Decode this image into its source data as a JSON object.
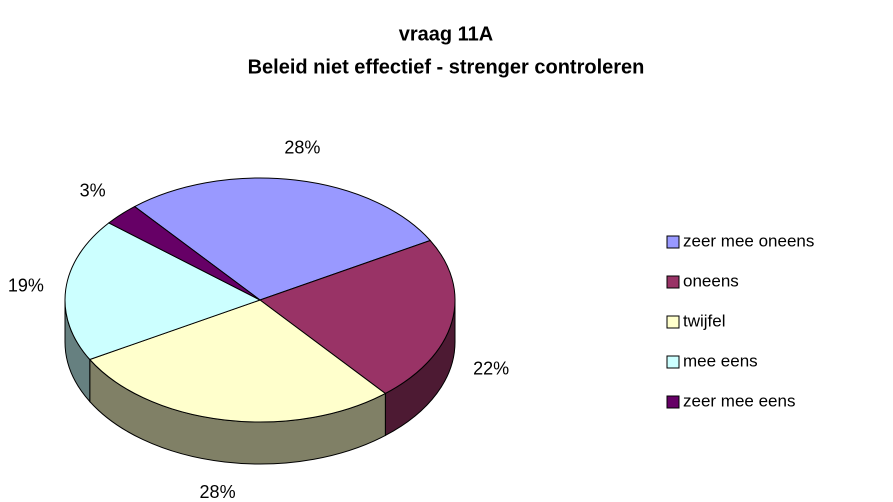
{
  "chart_data": {
    "type": "pie3d",
    "title": [
      "vraag 11A",
      "Beleid niet effectief - strenger controleren"
    ],
    "categories": [
      "zeer mee oneens",
      "oneens",
      "twijfel",
      "mee eens",
      "zeer mee eens"
    ],
    "values": [
      28,
      22,
      28,
      19,
      3
    ],
    "value_labels": [
      "28%",
      "22%",
      "28%",
      "19%",
      "3%"
    ],
    "colors": [
      "#9999ff",
      "#993366",
      "#ffffcc",
      "#ccffff",
      "#660066"
    ],
    "legend": "right"
  }
}
